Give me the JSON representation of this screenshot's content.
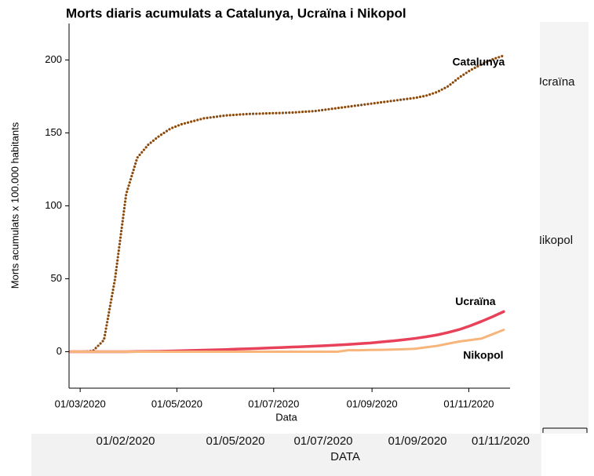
{
  "chart_data": {
    "type": "line",
    "title": "Morts diaris acumulats a Catalunya, Ucraïna i Nikopol",
    "xlabel": "Data",
    "ylabel": "Morts acumulats x 100.000 habitants",
    "x": [
      "24/02/2020",
      "02/03/2020",
      "09/03/2020",
      "16/03/2020",
      "23/03/2020",
      "30/03/2020",
      "06/04/2020",
      "13/04/2020",
      "20/04/2020",
      "27/04/2020",
      "04/05/2020",
      "11/05/2020",
      "18/05/2020",
      "25/05/2020",
      "01/06/2020",
      "08/06/2020",
      "15/06/2020",
      "22/06/2020",
      "29/06/2020",
      "06/07/2020",
      "13/07/2020",
      "20/07/2020",
      "27/07/2020",
      "03/08/2020",
      "10/08/2020",
      "17/08/2020",
      "24/08/2020",
      "31/08/2020",
      "07/09/2020",
      "14/09/2020",
      "21/09/2020",
      "28/09/2020",
      "05/10/2020",
      "12/10/2020",
      "19/10/2020",
      "26/10/2020",
      "02/11/2020",
      "09/11/2020",
      "16/11/2020",
      "23/11/2020"
    ],
    "series": [
      {
        "name": "Catalunya",
        "color": "#8b4a0c",
        "style": "dotted",
        "values": [
          0,
          0,
          0.5,
          8,
          50,
          108,
          133,
          142,
          148,
          153,
          156,
          158,
          160,
          161,
          162,
          162.5,
          163,
          163.2,
          163.5,
          163.7,
          164,
          164.5,
          165,
          166,
          167,
          168,
          169,
          170,
          171,
          172,
          173,
          174,
          175.5,
          178,
          182,
          188,
          193,
          197,
          200.5,
          203
        ]
      },
      {
        "name": "Ucraïna",
        "color": "#e8415a",
        "style": "solid",
        "values": [
          0,
          0,
          0,
          0,
          0,
          0,
          0.1,
          0.2,
          0.3,
          0.5,
          0.7,
          0.9,
          1.1,
          1.3,
          1.5,
          1.8,
          2.0,
          2.3,
          2.6,
          2.9,
          3.2,
          3.5,
          3.8,
          4.2,
          4.6,
          5.0,
          5.5,
          6.0,
          6.7,
          7.4,
          8.2,
          9.1,
          10.2,
          11.5,
          13.2,
          15.2,
          17.8,
          20.8,
          24.0,
          27.5
        ]
      },
      {
        "name": "Nikopol",
        "color": "#f7b57c",
        "style": "solid",
        "values": [
          0,
          0,
          0,
          0,
          0,
          0,
          0,
          0,
          0,
          0,
          0,
          0,
          0,
          0,
          0,
          0,
          0,
          0,
          0,
          0,
          0,
          0,
          0,
          0,
          0,
          1,
          1,
          1.2,
          1.3,
          1.5,
          1.7,
          2,
          3,
          4,
          5.5,
          7,
          8,
          9,
          12,
          15
        ]
      }
    ],
    "xlim": [
      "23/02/2020",
      "27/11/2020"
    ],
    "xticks": [
      "01/03/2020",
      "01/05/2020",
      "01/07/2020",
      "01/09/2020",
      "01/11/2020"
    ],
    "ylim": [
      -25,
      225
    ],
    "yticks": [
      0,
      50,
      100,
      150,
      200
    ]
  },
  "background": {
    "labels": [
      "Ucraïna",
      "Nikopol"
    ],
    "xticks": [
      "01/02/2020",
      "01/05/2020",
      "01/07/2020",
      "01/09/2020",
      "01/11/2020"
    ],
    "xlabel": "DATA"
  }
}
